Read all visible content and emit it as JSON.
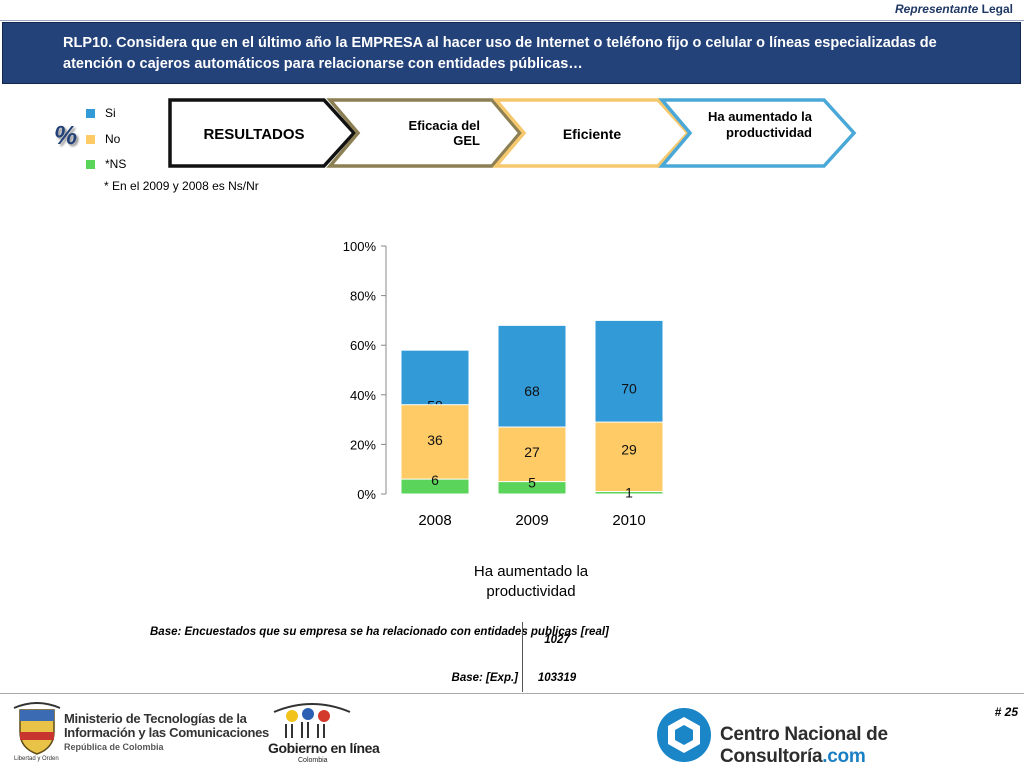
{
  "header": {
    "role_italic": "Representante",
    "role_rest": "Legal",
    "title": "RLP10. Considera que en el último año la EMPRESA al hacer uso de Internet o teléfono fijo o celular o líneas especializadas de atención o cajeros automáticos para relacionarse con entidades públicas…"
  },
  "legend": {
    "percent_mark": "%",
    "items": [
      {
        "label": "Si",
        "color": "#339ad8"
      },
      {
        "label": "No",
        "color": "#fecb66"
      },
      {
        "label": "*NS",
        "color": "#5ad45a"
      }
    ],
    "footnote": "* En el 2009 y 2008 es Ns/Nr"
  },
  "flow": {
    "steps": [
      {
        "label": "RESULTADOS",
        "color": "#111111"
      },
      {
        "label": "Eficacia del GEL",
        "color": "#8b7f53"
      },
      {
        "label": "Eficiente",
        "color": "#f6c86e"
      },
      {
        "label": "Ha aumentado la productividad",
        "color": "#4aa8d8"
      }
    ]
  },
  "chart_data": {
    "type": "bar",
    "stacked": true,
    "categories": [
      "2008",
      "2009",
      "2010"
    ],
    "series": [
      {
        "name": "Si",
        "color": "#339ad8",
        "values": [
          58,
          68,
          70
        ]
      },
      {
        "name": "No",
        "color": "#fecb66",
        "values": [
          36,
          27,
          29
        ]
      },
      {
        "name": "*NS",
        "color": "#5ad45a",
        "values": [
          6,
          5,
          1
        ]
      }
    ],
    "yticks": [
      "0%",
      "20%",
      "40%",
      "60%",
      "80%",
      "100%"
    ],
    "ylim": [
      0,
      100
    ],
    "xlabel": "Ha aumentado la productividad",
    "grid": false
  },
  "base": {
    "rows": [
      {
        "label": "Base: Encuestados que su empresa se ha relacionado con entidades publicas [real]",
        "value": "1027"
      },
      {
        "label": "Base: [Exp.]",
        "value": "103319"
      }
    ]
  },
  "footer": {
    "page_number": "# 25",
    "mintic_line1": "Ministerio de Tecnologías de la",
    "mintic_line2": "Información y las Comunicaciones",
    "mintic_line3": "República de Colombia",
    "shield_caption": "Libertad y Orden",
    "gel_name": "Gobierno en línea",
    "gel_country": "Colombia",
    "cnc_name": "Centro Nacional de Consultoría",
    "cnc_suffix": ".com"
  }
}
